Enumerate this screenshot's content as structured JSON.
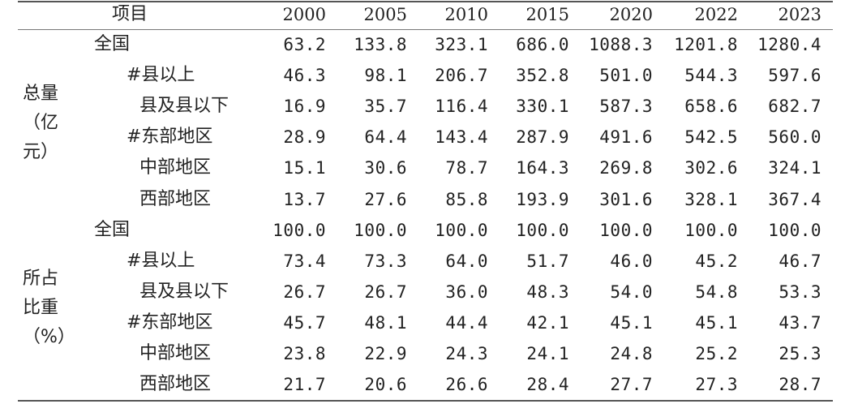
{
  "header": {
    "item": "项目",
    "years": [
      "2000",
      "2005",
      "2010",
      "2015",
      "2020",
      "2022",
      "2023"
    ]
  },
  "groups": [
    {
      "label_lines": [
        "总量",
        "（亿",
        "元）"
      ]
    },
    {
      "label_lines": [
        "所占",
        "比重",
        "（%）"
      ]
    }
  ],
  "rows": [
    {
      "label": "全国",
      "indent": 1,
      "values": [
        "63.2",
        "133.8",
        "323.1",
        "686.0",
        "1088.3",
        "1201.8",
        "1280.4"
      ]
    },
    {
      "label": "#县以上",
      "indent": 2,
      "values": [
        "46.3",
        "98.1",
        "206.7",
        "352.8",
        "501.0",
        "544.3",
        "597.6"
      ]
    },
    {
      "label": "县及县以下",
      "indent": 3,
      "values": [
        "16.9",
        "35.7",
        "116.4",
        "330.1",
        "587.3",
        "658.6",
        "682.7"
      ]
    },
    {
      "label": "#东部地区",
      "indent": 2,
      "values": [
        "28.9",
        "64.4",
        "143.4",
        "287.9",
        "491.6",
        "542.5",
        "560.0"
      ]
    },
    {
      "label": "中部地区",
      "indent": 3,
      "values": [
        "15.1",
        "30.6",
        "78.7",
        "164.3",
        "269.8",
        "302.6",
        "324.1"
      ]
    },
    {
      "label": "西部地区",
      "indent": 3,
      "values": [
        "13.7",
        "27.6",
        "85.8",
        "193.9",
        "301.6",
        "328.1",
        "367.4"
      ]
    },
    {
      "label": "全国",
      "indent": 1,
      "values": [
        "100.0",
        "100.0",
        "100.0",
        "100.0",
        "100.0",
        "100.0",
        "100.0"
      ]
    },
    {
      "label": "#县以上",
      "indent": 2,
      "values": [
        "73.4",
        "73.3",
        "64.0",
        "51.7",
        "46.0",
        "45.2",
        "46.7"
      ]
    },
    {
      "label": "县及县以下",
      "indent": 3,
      "values": [
        "26.7",
        "26.7",
        "36.0",
        "48.3",
        "54.0",
        "54.8",
        "53.3"
      ]
    },
    {
      "label": "#东部地区",
      "indent": 2,
      "values": [
        "45.7",
        "48.1",
        "44.4",
        "42.1",
        "45.1",
        "45.1",
        "43.7"
      ]
    },
    {
      "label": "中部地区",
      "indent": 3,
      "values": [
        "23.8",
        "22.9",
        "24.3",
        "24.1",
        "24.8",
        "25.2",
        "25.3"
      ]
    },
    {
      "label": "西部地区",
      "indent": 3,
      "values": [
        "21.7",
        "20.6",
        "26.6",
        "28.4",
        "27.7",
        "27.3",
        "28.7"
      ]
    }
  ]
}
